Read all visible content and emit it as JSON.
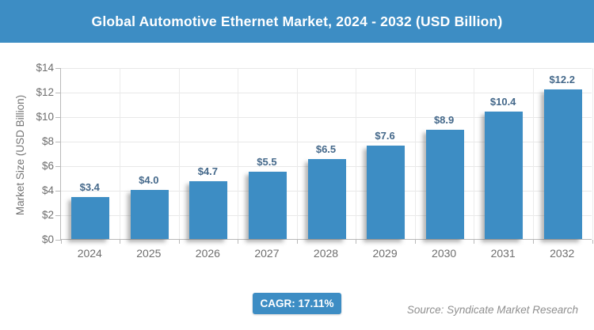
{
  "header": {
    "title": "Global Automotive Ethernet Market, 2024 - 2032 (USD Billion)"
  },
  "chart_data": {
    "type": "bar",
    "title": "Global Automotive Ethernet Market, 2024 - 2032 (USD Billion)",
    "categories": [
      "2024",
      "2025",
      "2026",
      "2027",
      "2028",
      "2029",
      "2030",
      "2031",
      "2032"
    ],
    "values": [
      3.4,
      4.0,
      4.7,
      5.5,
      6.5,
      7.6,
      8.9,
      10.4,
      12.2
    ],
    "bar_labels": [
      "$3.4",
      "$4.0",
      "$4.7",
      "$5.5",
      "$6.5",
      "$7.6",
      "$8.9",
      "$10.4",
      "$12.2"
    ],
    "xlabel": "",
    "ylabel": "Market Size (USD Billion)",
    "ylim": [
      0,
      14
    ],
    "ytick_step": 2,
    "ytick_labels": [
      "$0",
      "$2",
      "$4",
      "$6",
      "$8",
      "$10",
      "$12",
      "$14"
    ],
    "grid": true,
    "legend": "none",
    "bar_color": "#3d8dc4",
    "value_label_color": "#44688a",
    "header_color": "#3d8dc4"
  },
  "footer": {
    "cagr_label": "CAGR: 17.11%",
    "source": "Source: Syndicate Market Research"
  }
}
